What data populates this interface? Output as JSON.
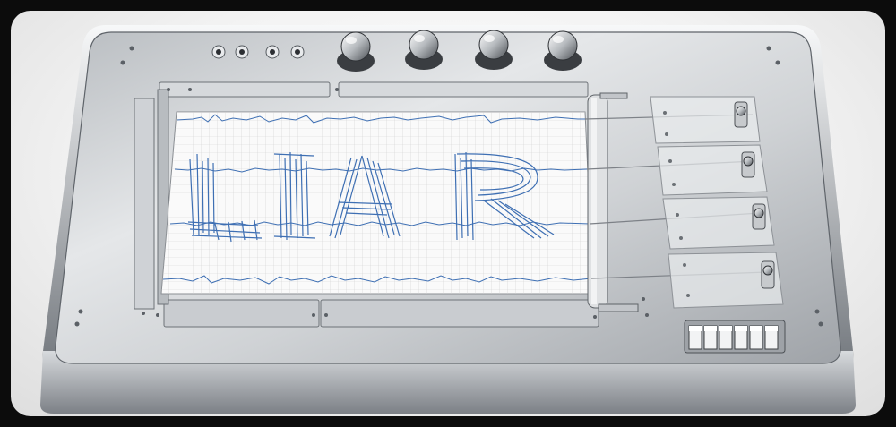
{
  "scene": {
    "description_text": "",
    "paper_word": "LIAR"
  },
  "colors": {
    "frame_black": "#0c0c0c",
    "background": "#f4f4f4",
    "metal_light": "#d9dcdf",
    "metal_dark": "#6f7378",
    "paper": "#fafafa",
    "grid": "#c9c9c9",
    "trace": "#3e6fb3"
  },
  "counts": {
    "knobs": 4,
    "top_jacks": 4,
    "recording_arms": 4,
    "switches": 6
  }
}
